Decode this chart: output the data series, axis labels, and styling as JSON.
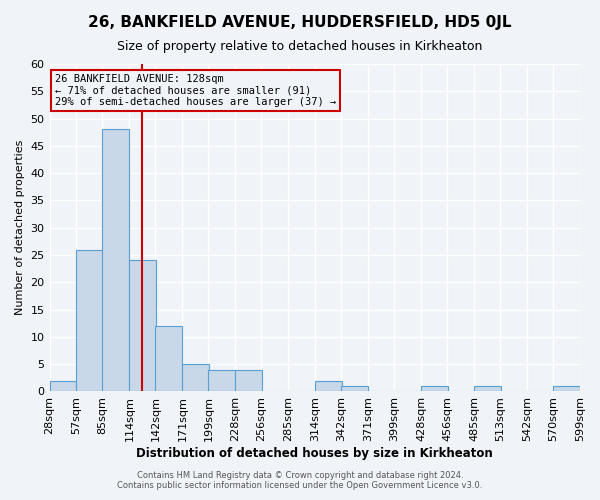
{
  "title": "26, BANKFIELD AVENUE, HUDDERSFIELD, HD5 0JL",
  "subtitle": "Size of property relative to detached houses in Kirkheaton",
  "xlabel": "Distribution of detached houses by size in Kirkheaton",
  "ylabel": "Number of detached properties",
  "bin_edges": [
    28,
    57,
    85,
    114,
    142,
    171,
    199,
    228,
    256,
    285,
    314,
    342,
    371,
    399,
    428,
    456,
    485,
    513,
    542,
    570,
    599
  ],
  "bin_labels": [
    "28sqm",
    "57sqm",
    "85sqm",
    "114sqm",
    "142sqm",
    "171sqm",
    "199sqm",
    "228sqm",
    "256sqm",
    "285sqm",
    "314sqm",
    "342sqm",
    "371sqm",
    "399sqm",
    "428sqm",
    "456sqm",
    "485sqm",
    "513sqm",
    "542sqm",
    "570sqm",
    "599sqm"
  ],
  "counts": [
    2,
    26,
    48,
    24,
    12,
    5,
    4,
    4,
    0,
    0,
    2,
    1,
    0,
    0,
    1,
    0,
    1,
    0,
    0,
    1
  ],
  "bar_color": "#c8d8e8",
  "bar_edge_color": "#5a9fd4",
  "property_size": 128,
  "vline_x": 128,
  "vline_color": "#cc0000",
  "annotation_lines": [
    "26 BANKFIELD AVENUE: 128sqm",
    "← 71% of detached houses are smaller (91)",
    "29% of semi-detached houses are larger (37) →"
  ],
  "annotation_box_color": "#cc0000",
  "ylim": [
    0,
    60
  ],
  "yticks": [
    0,
    5,
    10,
    15,
    20,
    25,
    30,
    35,
    40,
    45,
    50,
    55,
    60
  ],
  "footer_line1": "Contains HM Land Registry data © Crown copyright and database right 2024.",
  "footer_line2": "Contains public sector information licensed under the Open Government Licence v3.0.",
  "background_color": "#f0f4f8",
  "grid_color": "#ffffff"
}
